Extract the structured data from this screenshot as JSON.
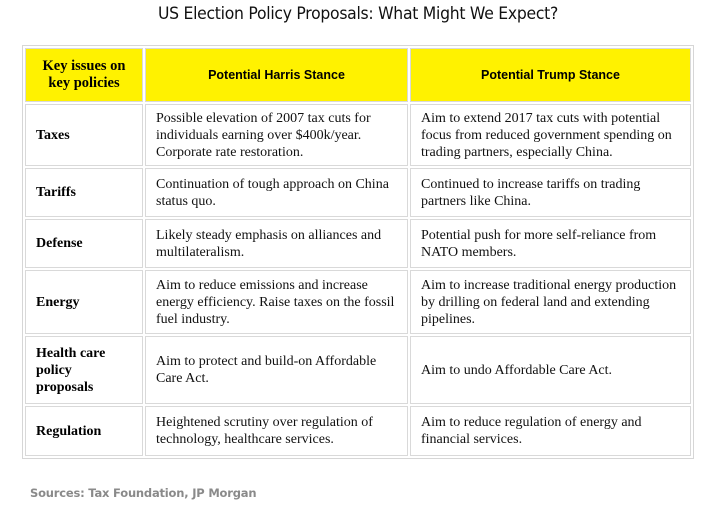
{
  "title": "US Election Policy Proposals: What Might We Expect?",
  "table": {
    "headers": {
      "issue": "Key issues on key policies",
      "harris": "Potential Harris Stance",
      "trump": "Potential Trump Stance"
    },
    "rows": [
      {
        "issue": "Taxes",
        "harris": "Possible elevation of 2007 tax cuts for individuals earning over $400k/year. Corporate rate restoration.",
        "trump": "Aim to extend 2017 tax cuts with potential focus from reduced government spending on trading partners, especially China."
      },
      {
        "issue": "Tariffs",
        "harris": "Continuation of tough approach on China status quo.",
        "trump": "Continued to increase tariffs on trading partners like China."
      },
      {
        "issue": "Defense",
        "harris": "Likely steady emphasis on alliances and multilateralism.",
        "trump": "Potential push for more self-reliance from NATO members."
      },
      {
        "issue": "Energy",
        "harris": "Aim to reduce emissions and increase energy efficiency. Raise taxes on the fossil fuel industry.",
        "trump": "Aim to increase traditional energy production by drilling on federal land and extending pipelines."
      },
      {
        "issue": "Health care policy proposals",
        "harris": "Aim to protect and build-on Affordable Care Act.",
        "trump": "Aim to undo Affordable Care Act."
      },
      {
        "issue": "Regulation",
        "harris": "Heightened scrutiny over regulation of technology, healthcare services.",
        "trump": "Aim to reduce regulation of energy and financial services."
      }
    ]
  },
  "sources": "Sources: Tax Foundation, JP Morgan",
  "colors": {
    "header_fill": "#fff200",
    "border": "#d9d9d9",
    "sources_text": "#8a8a8a"
  }
}
